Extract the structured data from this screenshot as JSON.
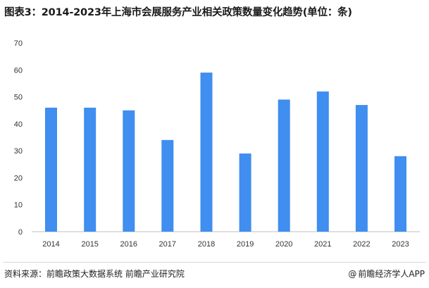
{
  "title": "图表3：2014-2023年上海市会展服务产业相关政策数量变化趋势(单位：条)",
  "chart_data": {
    "type": "bar",
    "categories": [
      "2014",
      "2015",
      "2016",
      "2017",
      "2018",
      "2019",
      "2020",
      "2021",
      "2022",
      "2023"
    ],
    "values": [
      46,
      46,
      45,
      34,
      59,
      29,
      49,
      52,
      47,
      28
    ],
    "ylim": [
      0,
      70
    ],
    "yticks": [
      0,
      10,
      20,
      30,
      40,
      50,
      60,
      70
    ],
    "bar_color": "#3f8ef0",
    "grid": false,
    "xlabel": "",
    "ylabel": ""
  },
  "footer": {
    "source": "资料来源：前瞻政策大数据系统 前瞻产业研究院",
    "brand_symbol": "@",
    "brand": "前瞻经济学人APP"
  }
}
